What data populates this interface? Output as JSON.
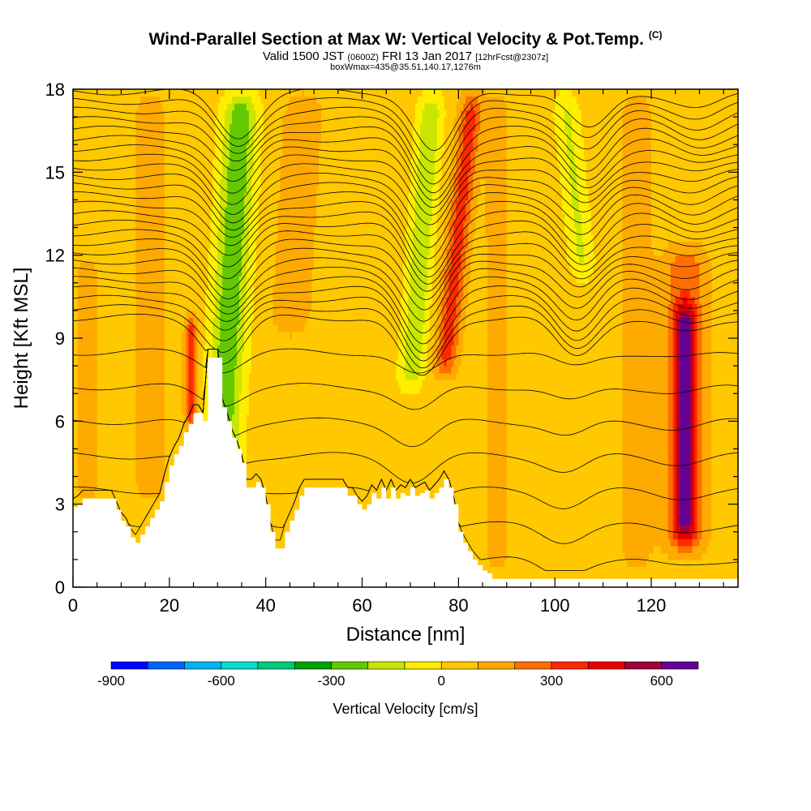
{
  "header": {
    "title": "Wind-Parallel Section at Max W: Vertical Velocity & Pot.Temp.",
    "title_mark": "(C)",
    "valid_prefix": "Valid 1500 JST",
    "valid_utc": "(0600Z)",
    "valid_date": "FRI 13 Jan 2017",
    "forecast": "[12hrFcst@2307z]",
    "box_info": "boxWmax=435@35.51,140.17,1276m"
  },
  "chart_data": {
    "type": "heatmap",
    "xlabel": "Distance [nm]",
    "ylabel": "Height [Kft MSL]",
    "xlim": [
      0,
      138
    ],
    "ylim": [
      0,
      18
    ],
    "x_ticks": [
      0,
      20,
      40,
      60,
      80,
      100,
      120
    ],
    "y_ticks": [
      0,
      3,
      6,
      9,
      12,
      15,
      18
    ],
    "colorbar": {
      "title": "Vertical Velocity [cm/s]",
      "levels": [
        -900,
        -800,
        -700,
        -600,
        -500,
        -400,
        -300,
        -200,
        -100,
        0,
        100,
        200,
        300,
        400,
        500,
        600,
        700
      ],
      "tick_values": [
        -900,
        -600,
        -300,
        0,
        300,
        600
      ],
      "tick_labels": [
        "-900",
        "-600",
        "-300",
        "0",
        "300",
        "600"
      ],
      "colors": [
        "#0000ff",
        "#0064ff",
        "#00b4f0",
        "#00dcc8",
        "#00c878",
        "#00a000",
        "#64c800",
        "#c8e600",
        "#ffee00",
        "#ffc800",
        "#ffaa00",
        "#ff6e00",
        "#ff2800",
        "#e60000",
        "#a0003c",
        "#640096"
      ]
    },
    "velocity_features": [
      {
        "x": 30.5,
        "x_top_offset": 4.5,
        "z_min": 3.6,
        "z_max": 18.0,
        "half_width": 3.6,
        "value": -330
      },
      {
        "x": 24.5,
        "x_top_offset": 0.0,
        "z_min": 5.5,
        "z_max": 10.0,
        "half_width": 1.3,
        "value": 320
      },
      {
        "x": 70.0,
        "x_top_offset": 4.5,
        "z_min": 7.0,
        "z_max": 18.0,
        "half_width": 2.6,
        "value": -230
      },
      {
        "x": 77.0,
        "x_top_offset": 6.0,
        "z_min": 7.5,
        "z_max": 18.0,
        "half_width": 2.4,
        "value": 300
      },
      {
        "x": 106.0,
        "x_top_offset": -4.0,
        "z_min": 11.0,
        "z_max": 18.0,
        "half_width": 2.6,
        "value": -160
      },
      {
        "x": 127.0,
        "x_top_offset": 0.0,
        "z_min": 1.5,
        "z_max": 10.5,
        "half_width": 2.2,
        "value": 380
      },
      {
        "x": 127.0,
        "x_top_offset": 0.0,
        "z_min": 1.0,
        "z_max": 12.5,
        "half_width": 4.5,
        "value": 220
      },
      {
        "x": 16.0,
        "x_top_offset": 0.0,
        "z_min": 3.0,
        "z_max": 18.0,
        "half_width": 3.0,
        "value": 120
      },
      {
        "x": 45.0,
        "x_top_offset": 3.0,
        "z_min": 9.0,
        "z_max": 18.0,
        "half_width": 4.0,
        "value": 130
      },
      {
        "x": 117.0,
        "x_top_offset": 0.0,
        "z_min": 0.5,
        "z_max": 18.0,
        "half_width": 3.0,
        "value": 120
      },
      {
        "x": 3.0,
        "x_top_offset": 0.0,
        "z_min": 3.0,
        "z_max": 12.0,
        "half_width": 2.5,
        "value": 110
      },
      {
        "x": 88.0,
        "x_top_offset": 0.0,
        "z_min": 0.5,
        "z_max": 18.0,
        "half_width": 2.5,
        "value": 110
      },
      {
        "x": 96.0,
        "x_top_offset": 0.0,
        "z_min": 0.5,
        "z_max": 8.0,
        "half_width": 4.0,
        "value": -40
      }
    ],
    "terrain_nm": [
      0,
      1,
      2,
      3,
      4,
      5,
      6,
      7,
      8,
      9,
      10,
      11,
      12,
      13,
      14,
      15,
      16,
      17,
      18,
      19,
      20,
      21,
      22,
      23,
      24,
      25,
      26,
      27,
      28,
      29,
      30,
      31,
      32,
      33,
      34,
      35,
      36,
      37,
      38,
      39,
      40,
      41,
      42,
      43,
      44,
      45,
      46,
      47,
      48,
      49,
      50,
      51,
      52,
      53,
      54,
      55,
      56,
      57,
      58,
      59,
      60,
      61,
      62,
      63,
      64,
      65,
      66,
      67,
      68,
      69,
      70,
      71,
      72,
      73,
      74,
      75,
      76,
      77,
      78,
      79,
      80,
      81,
      82,
      83,
      84,
      85,
      86,
      87,
      88,
      89,
      90,
      91,
      92,
      93,
      94,
      95,
      96,
      97,
      98,
      99,
      100,
      101,
      102,
      103,
      104,
      105,
      106,
      107,
      108,
      109,
      110,
      111,
      112,
      113,
      114,
      115,
      116,
      117,
      118,
      119,
      120,
      121,
      122,
      123,
      124,
      125,
      126,
      127,
      128,
      129,
      130,
      131,
      132,
      133,
      134,
      135,
      136,
      137,
      138
    ],
    "terrain_kft": [
      2.9,
      3.0,
      3.2,
      3.2,
      3.2,
      3.2,
      3.2,
      3.2,
      3.2,
      2.8,
      2.4,
      2.2,
      1.8,
      1.6,
      1.9,
      2.2,
      2.5,
      2.8,
      3.1,
      3.8,
      4.4,
      4.8,
      5.1,
      5.6,
      5.9,
      6.3,
      6.3,
      6.0,
      8.3,
      8.3,
      8.3,
      6.5,
      6.0,
      5.4,
      5.0,
      4.5,
      3.6,
      3.6,
      3.8,
      3.6,
      3.0,
      2.0,
      1.4,
      1.4,
      2.0,
      2.4,
      2.8,
      3.3,
      3.6,
      3.6,
      3.6,
      3.6,
      3.6,
      3.6,
      3.6,
      3.6,
      3.6,
      3.3,
      3.3,
      3.0,
      2.8,
      3.0,
      3.4,
      3.2,
      3.6,
      3.2,
      3.6,
      3.2,
      3.4,
      3.3,
      3.6,
      3.3,
      3.4,
      3.5,
      3.2,
      3.4,
      3.6,
      3.9,
      3.6,
      3.0,
      2.0,
      1.6,
      1.3,
      1.0,
      0.8,
      0.6,
      0.5,
      0.3,
      0.3,
      0.3,
      0.3,
      0.3,
      0.3,
      0.3,
      0.3,
      0.3,
      0.3,
      0.3,
      0.3,
      0.3,
      0.3,
      0.3,
      0.3,
      0.3,
      0.3,
      0.3,
      0.3,
      0.3,
      0.3,
      0.3,
      0.3,
      0.3,
      0.3,
      0.3,
      0.3,
      0.3,
      0.3,
      0.3,
      0.3,
      0.3,
      0.3,
      0.3,
      0.3,
      0.3,
      0.3,
      0.3,
      0.3,
      0.3,
      0.3,
      0.3,
      0.3,
      0.3,
      0.3,
      0.3,
      0.3,
      0.3,
      0.3,
      0.3,
      0.3
    ]
  }
}
